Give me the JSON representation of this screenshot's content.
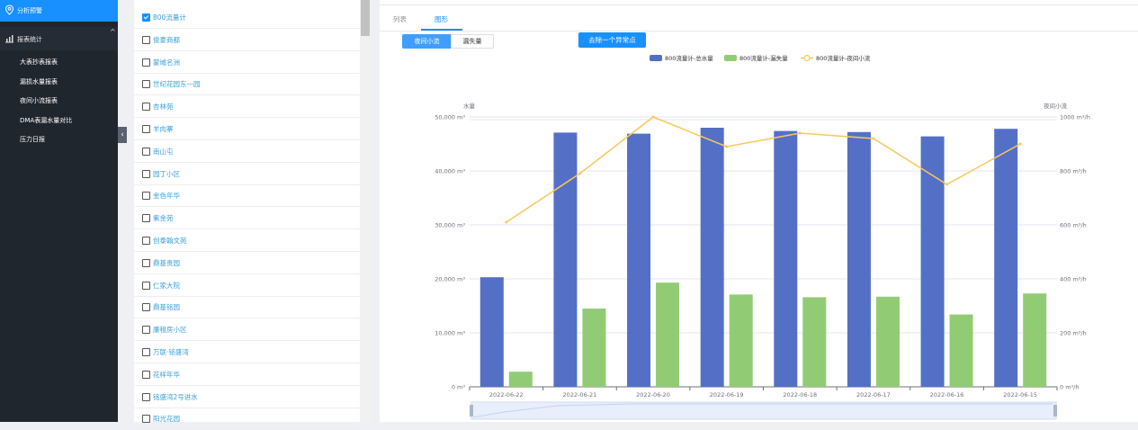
{
  "sidebar": {
    "top_item": {
      "label": "分析预警",
      "icon": "map-pin-icon"
    },
    "group": {
      "label": "报表统计",
      "icon": "bar-chart-icon",
      "chevron": "chevron-up-icon"
    },
    "sub_items": [
      {
        "label": "大表抄表报表"
      },
      {
        "label": "漏损水量报表"
      },
      {
        "label": "夜间小流报表"
      },
      {
        "label": "DMA表漏水量对比"
      },
      {
        "label": "压力日报"
      }
    ],
    "collapse_icon": "chevron-left-icon"
  },
  "list": {
    "items": [
      {
        "label": "800流量计",
        "checked": true
      },
      {
        "label": "俊豪商都",
        "checked": false
      },
      {
        "label": "蒙域名洲",
        "checked": false
      },
      {
        "label": "世纪花园东一园",
        "checked": false
      },
      {
        "label": "杏林苑",
        "checked": false
      },
      {
        "label": "羊肉寨",
        "checked": false
      },
      {
        "label": "南山屯",
        "checked": false
      },
      {
        "label": "园丁小区",
        "checked": false
      },
      {
        "label": "金色年华",
        "checked": false
      },
      {
        "label": "紫金苑",
        "checked": false
      },
      {
        "label": "创泰翰文苑",
        "checked": false
      },
      {
        "label": "鼎基贵园",
        "checked": false
      },
      {
        "label": "仁家大院",
        "checked": false
      },
      {
        "label": "鼎基铭园",
        "checked": false
      },
      {
        "label": "廉租房小区",
        "checked": false
      },
      {
        "label": "万联·铭盛湾",
        "checked": false
      },
      {
        "label": "花样年华",
        "checked": false
      },
      {
        "label": "铭盛湾2号进水",
        "checked": false
      },
      {
        "label": "阳光花园",
        "checked": false
      }
    ]
  },
  "main": {
    "tabs": [
      {
        "label": "列表"
      },
      {
        "label": "图形"
      }
    ],
    "active_tab": 1,
    "segments": [
      {
        "label": "夜间小流"
      },
      {
        "label": "漏失量"
      }
    ],
    "remove_button": "去除一个异常点"
  },
  "colors": {
    "bar_total": "#5470c6",
    "bar_leak": "#91cc75",
    "line_night": "#fac858",
    "accent": "#1890ff"
  },
  "chart_data": {
    "type": "bar",
    "categories": [
      "2022-06-22",
      "2022-06-21",
      "2022-06-20",
      "2022-06-19",
      "2022-06-18",
      "2022-06-17",
      "2022-06-16",
      "2022-06-15"
    ],
    "series": [
      {
        "name": "800流量计-总水量",
        "type": "bar",
        "axis": "left",
        "values": [
          20300,
          47100,
          46900,
          48000,
          47400,
          47200,
          46400,
          47800
        ]
      },
      {
        "name": "800流量计-漏失量",
        "type": "bar",
        "axis": "left",
        "values": [
          2800,
          14500,
          19300,
          17100,
          16600,
          16700,
          13400,
          17300
        ]
      },
      {
        "name": "800流量计-夜间小流",
        "type": "line",
        "axis": "right",
        "values": [
          610,
          790,
          1000,
          890,
          940,
          920,
          750,
          900
        ]
      }
    ],
    "ylabel_left": "水量",
    "ylabel_right": "夜间小流",
    "ylim_left": [
      0,
      50000
    ],
    "ylim_right": [
      0,
      1000
    ],
    "yticks_left": [
      "0 m³",
      "10,000 m³",
      "20,000 m³",
      "30,000 m³",
      "40,000 m³",
      "50,000 m³"
    ],
    "yticks_right": [
      "0  m³/h",
      "200  m³/h",
      "400  m³/h",
      "600  m³/h",
      "800  m³/h",
      "1000  m³/h"
    ],
    "legend_position": "top",
    "grid": true,
    "datazoom": true
  }
}
